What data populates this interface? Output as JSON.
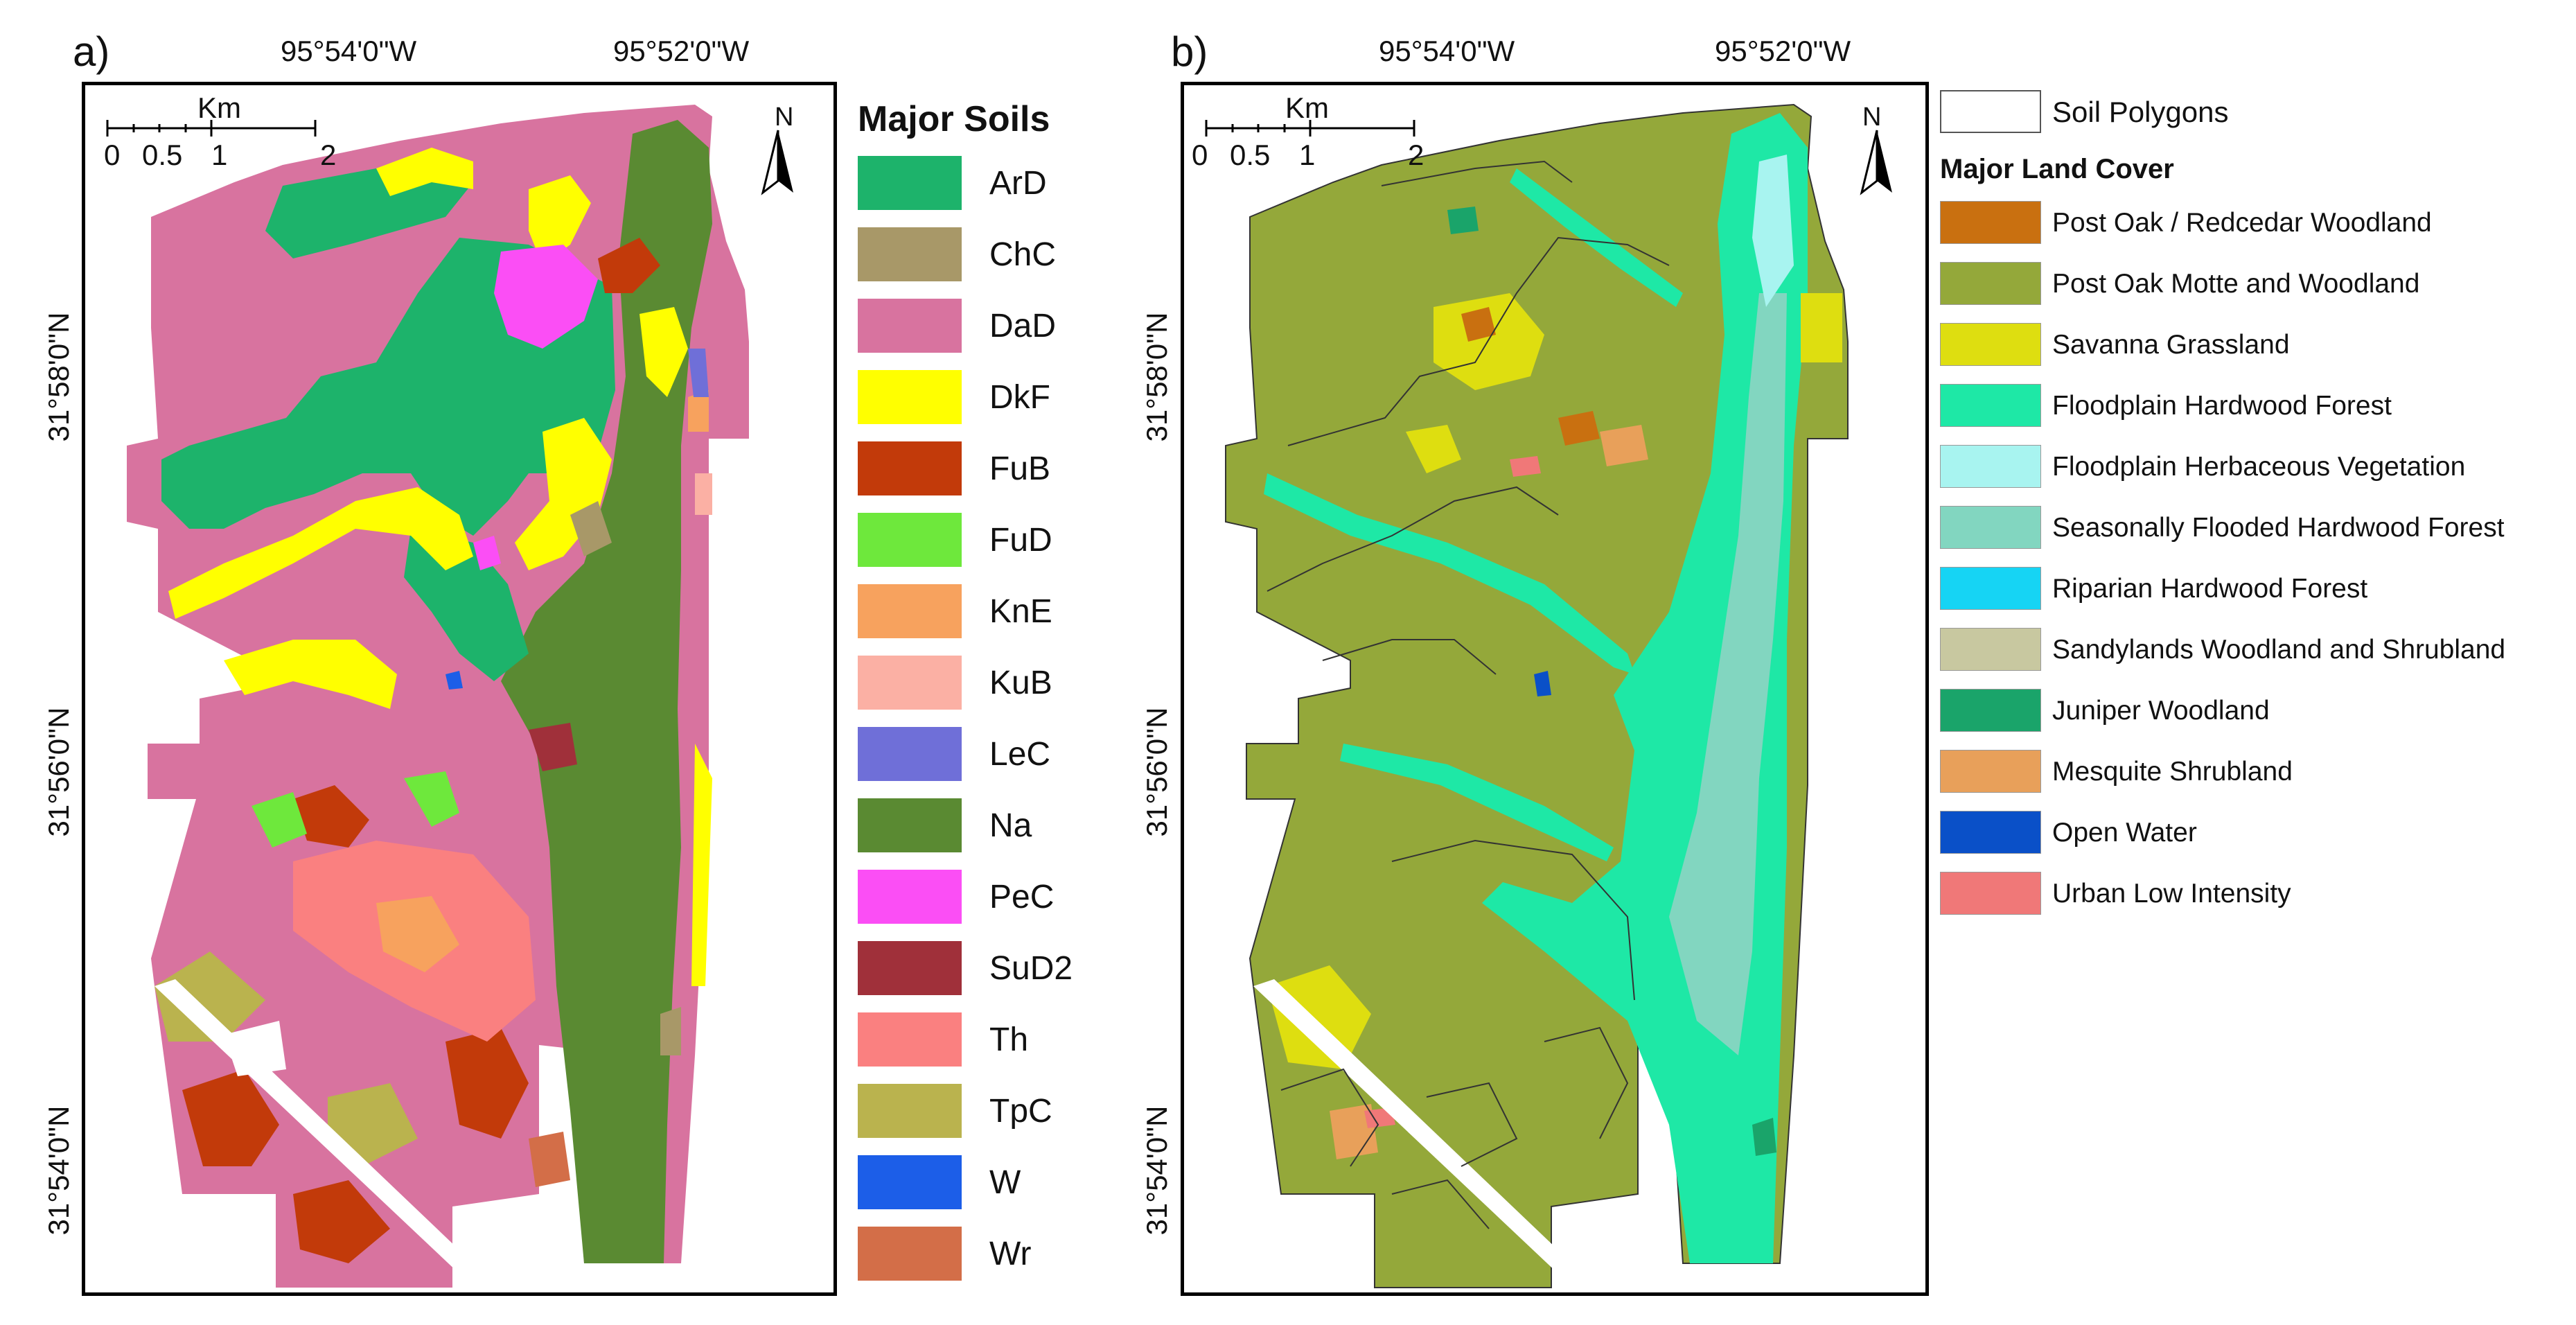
{
  "panel_a": {
    "label": "a)",
    "top_coords": [
      "95°54'0\"W",
      "95°52'0\"W"
    ],
    "side_coords": [
      "31°58'0\"N",
      "31°56'0\"N",
      "31°54'0\"N"
    ],
    "scale": {
      "unit": "Km",
      "ticks": [
        "0",
        "0.5",
        "1",
        "2"
      ]
    },
    "north": "N",
    "legend_title": "Major Soils",
    "soils": [
      {
        "code": "ArD",
        "color": "#1db36b"
      },
      {
        "code": "ChC",
        "color": "#a89868"
      },
      {
        "code": "DaD",
        "color": "#d8739f"
      },
      {
        "code": "DkF",
        "color": "#ffff00"
      },
      {
        "code": "FuB",
        "color": "#c23a0a"
      },
      {
        "code": "FuD",
        "color": "#6ee83c"
      },
      {
        "code": "KnE",
        "color": "#f7a25e"
      },
      {
        "code": "KuB",
        "color": "#fbb0a4"
      },
      {
        "code": "LeC",
        "color": "#6f6fd8"
      },
      {
        "code": "Na",
        "color": "#5a8a32"
      },
      {
        "code": "PeC",
        "color": "#fb4ef5"
      },
      {
        "code": "SuD2",
        "color": "#a0303a"
      },
      {
        "code": "Th",
        "color": "#fa8080"
      },
      {
        "code": "TpC",
        "color": "#bab34e"
      },
      {
        "code": "W",
        "color": "#1c5ee8"
      },
      {
        "code": "Wr",
        "color": "#d36e48"
      }
    ]
  },
  "panel_b": {
    "label": "b)",
    "top_coords": [
      "95°54'0\"W",
      "95°52'0\"W"
    ],
    "side_coords": [
      "31°58'0\"N",
      "31°56'0\"N",
      "31°54'0\"N"
    ],
    "scale": {
      "unit": "Km",
      "ticks": [
        "0",
        "0.5",
        "1",
        "2"
      ]
    },
    "north": "N",
    "polygon_entry": "Soil Polygons",
    "legend_title": "Major Land Cover",
    "covers": [
      {
        "name": "Post Oak / Redcedar Woodland",
        "color": "#c97010"
      },
      {
        "name": "Post Oak Motte and Woodland",
        "color": "#94a83a"
      },
      {
        "name": "Savanna Grassland",
        "color": "#dede10"
      },
      {
        "name": "Floodplain Hardwood Forest",
        "color": "#1ee8a6"
      },
      {
        "name": "Floodplain Herbaceous Vegetation",
        "color": "#a8f4f0"
      },
      {
        "name": "Seasonally Flooded Hardwood Forest",
        "color": "#82d6c0"
      },
      {
        "name": "Riparian Hardwood Forest",
        "color": "#16d4f4"
      },
      {
        "name": "Sandylands Woodland and Shrubland",
        "color": "#c8c8a0"
      },
      {
        "name": "Juniper Woodland",
        "color": "#1aa46a"
      },
      {
        "name": "Mesquite Shrubland",
        "color": "#e8a05a"
      },
      {
        "name": "Open Water",
        "color": "#0a50c8"
      },
      {
        "name": "Urban Low Intensity",
        "color": "#f07878"
      }
    ]
  }
}
